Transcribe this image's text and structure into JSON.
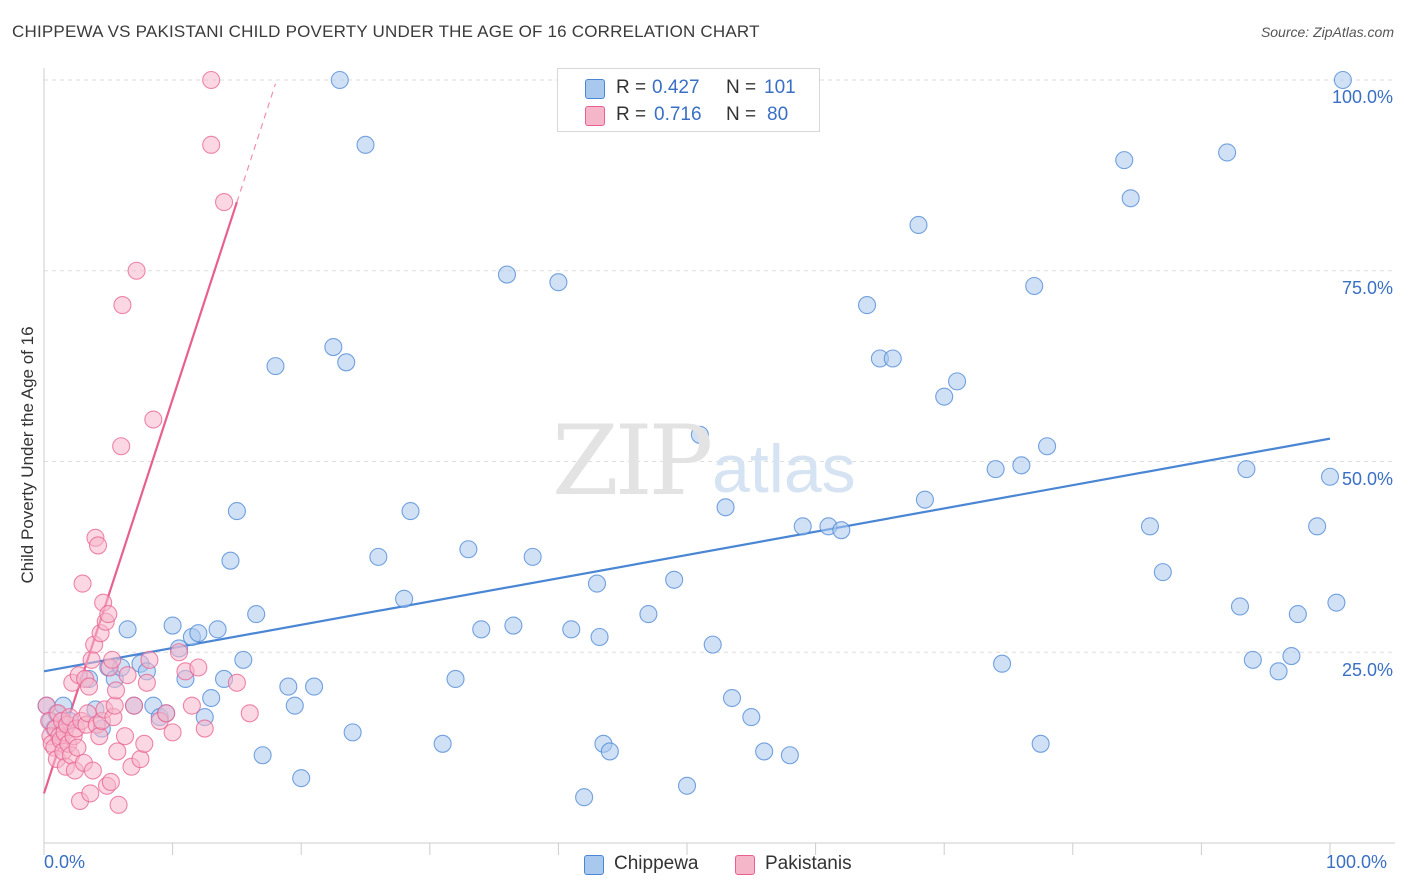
{
  "title": "CHIPPEWA VS PAKISTANI CHILD POVERTY UNDER THE AGE OF 16 CORRELATION CHART",
  "source": "Source: ZipAtlas.com",
  "watermark": {
    "zip": "ZIP",
    "atlas": "atlas"
  },
  "colors": {
    "blue": "#4a86d4",
    "blue_fill": "#a9c8ee",
    "pink": "#e8608f",
    "pink_fill": "#f6b6ca",
    "grid": "#dddddd"
  },
  "legend_top": {
    "rows": [
      {
        "label": "R =",
        "r_value": "0.427",
        "n_label": "N =",
        "n_value": "101"
      },
      {
        "label": "R =",
        "r_value": "0.716",
        "n_label": "N =",
        "n_value": "80"
      }
    ]
  },
  "legend_bottom": [
    {
      "label": "Chippewa"
    },
    {
      "label": "Pakistanis"
    }
  ],
  "chart_data": {
    "type": "scatter",
    "title": "CHIPPEWA VS PAKISTANI CHILD POVERTY UNDER THE AGE OF 16 CORRELATION CHART",
    "xlabel": "",
    "ylabel": "Child Poverty Under the Age of 16",
    "xlim": [
      0,
      105
    ],
    "ylim": [
      0,
      105
    ],
    "x_ticks": [
      "0.0%",
      "100.0%"
    ],
    "y_ticks": [
      {
        "value": 25,
        "label": "25.0%"
      },
      {
        "value": 50,
        "label": "50.0%"
      },
      {
        "value": 75,
        "label": "75.0%"
      },
      {
        "value": 100,
        "label": "100.0%"
      }
    ],
    "series": [
      {
        "name": "Chippewa",
        "trend": {
          "x0": 0,
          "y0": 22.5,
          "x1": 100,
          "y1": 53.0
        },
        "points": [
          [
            0.2,
            18
          ],
          [
            0.5,
            16
          ],
          [
            0.8,
            15
          ],
          [
            1.0,
            17
          ],
          [
            1.5,
            18
          ],
          [
            2.0,
            16
          ],
          [
            3.5,
            21.5
          ],
          [
            4.0,
            17.5
          ],
          [
            4.5,
            15
          ],
          [
            5.0,
            23
          ],
          [
            5.5,
            21.5
          ],
          [
            6,
            23
          ],
          [
            6.5,
            28
          ],
          [
            7,
            18
          ],
          [
            7.5,
            23.5
          ],
          [
            8,
            22.5
          ],
          [
            8.5,
            18
          ],
          [
            9,
            16.5
          ],
          [
            9.5,
            17
          ],
          [
            10,
            28.5
          ],
          [
            10.5,
            25.5
          ],
          [
            11,
            21.5
          ],
          [
            11.5,
            27
          ],
          [
            12,
            27.5
          ],
          [
            12.5,
            16.5
          ],
          [
            13,
            19
          ],
          [
            13.5,
            28
          ],
          [
            14,
            21.5
          ],
          [
            14.5,
            37
          ],
          [
            15,
            43.5
          ],
          [
            15.5,
            24
          ],
          [
            16.5,
            30
          ],
          [
            17,
            11.5
          ],
          [
            18,
            62.5
          ],
          [
            19,
            20.5
          ],
          [
            19.5,
            18
          ],
          [
            20,
            8.5
          ],
          [
            21,
            20.5
          ],
          [
            22.5,
            65
          ],
          [
            23,
            100
          ],
          [
            23.5,
            63
          ],
          [
            24,
            14.5
          ],
          [
            25,
            91.5
          ],
          [
            26,
            37.5
          ],
          [
            28,
            32
          ],
          [
            28.5,
            43.5
          ],
          [
            31,
            13
          ],
          [
            32,
            21.5
          ],
          [
            33,
            38.5
          ],
          [
            34,
            28
          ],
          [
            36,
            74.5
          ],
          [
            36.5,
            28.5
          ],
          [
            38,
            37.5
          ],
          [
            40,
            73.5
          ],
          [
            41,
            28
          ],
          [
            42,
            6
          ],
          [
            43,
            34
          ],
          [
            43.2,
            27
          ],
          [
            43.5,
            13
          ],
          [
            44,
            12
          ],
          [
            47,
            30
          ],
          [
            49,
            34.5
          ],
          [
            50,
            7.5
          ],
          [
            51,
            53.5
          ],
          [
            52,
            26
          ],
          [
            53,
            44
          ],
          [
            53.5,
            19
          ],
          [
            55,
            16.5
          ],
          [
            56,
            12
          ],
          [
            58,
            11.5
          ],
          [
            59,
            41.5
          ],
          [
            61,
            41.5
          ],
          [
            62,
            41
          ],
          [
            64,
            70.5
          ],
          [
            65,
            63.5
          ],
          [
            66,
            63.5
          ],
          [
            68,
            81
          ],
          [
            68.5,
            45
          ],
          [
            70,
            58.5
          ],
          [
            71,
            60.5
          ],
          [
            74,
            49
          ],
          [
            74.5,
            23.5
          ],
          [
            76,
            49.5
          ],
          [
            77,
            73
          ],
          [
            77.5,
            13
          ],
          [
            78,
            52
          ],
          [
            84,
            89.5
          ],
          [
            84.5,
            84.5
          ],
          [
            86,
            41.5
          ],
          [
            87,
            35.5
          ],
          [
            92,
            90.5
          ],
          [
            93,
            31
          ],
          [
            93.5,
            49
          ],
          [
            94,
            24
          ],
          [
            96,
            22.5
          ],
          [
            97,
            24.5
          ],
          [
            97.5,
            30
          ],
          [
            99,
            41.5
          ],
          [
            100,
            48
          ],
          [
            100.5,
            31.5
          ],
          [
            101,
            100
          ]
        ]
      },
      {
        "name": "Pakistanis",
        "trend": {
          "x0": 0,
          "y0": 6.5,
          "x1": 15,
          "y1": 84
        },
        "trend_dashed_end": {
          "x": 18,
          "y": 99.5
        },
        "points": [
          [
            0.2,
            18
          ],
          [
            0.4,
            16
          ],
          [
            0.5,
            14
          ],
          [
            0.6,
            13
          ],
          [
            0.8,
            12.5
          ],
          [
            0.9,
            15
          ],
          [
            1.0,
            11
          ],
          [
            1.1,
            17
          ],
          [
            1.2,
            14
          ],
          [
            1.3,
            13.5
          ],
          [
            1.4,
            16
          ],
          [
            1.5,
            12
          ],
          [
            1.6,
            14.5
          ],
          [
            1.7,
            10
          ],
          [
            1.8,
            15.5
          ],
          [
            1.9,
            13
          ],
          [
            2.0,
            16.5
          ],
          [
            2.1,
            11.5
          ],
          [
            2.2,
            21
          ],
          [
            2.3,
            14
          ],
          [
            2.4,
            9.5
          ],
          [
            2.5,
            15
          ],
          [
            2.6,
            12.5
          ],
          [
            2.7,
            22
          ],
          [
            2.8,
            5.5
          ],
          [
            2.9,
            16
          ],
          [
            3.0,
            34
          ],
          [
            3.1,
            10.5
          ],
          [
            3.2,
            21.5
          ],
          [
            3.3,
            15.5
          ],
          [
            3.4,
            17
          ],
          [
            3.5,
            20.5
          ],
          [
            3.6,
            6.5
          ],
          [
            3.7,
            24
          ],
          [
            3.8,
            9.5
          ],
          [
            3.9,
            26
          ],
          [
            4.0,
            40
          ],
          [
            4.1,
            15.5
          ],
          [
            4.2,
            39
          ],
          [
            4.3,
            14
          ],
          [
            4.4,
            27.5
          ],
          [
            4.5,
            16
          ],
          [
            4.6,
            31.5
          ],
          [
            4.7,
            17.5
          ],
          [
            4.8,
            29
          ],
          [
            4.9,
            7.5
          ],
          [
            5.0,
            30
          ],
          [
            5.1,
            23
          ],
          [
            5.2,
            8
          ],
          [
            5.3,
            24
          ],
          [
            5.4,
            16.5
          ],
          [
            5.5,
            18
          ],
          [
            5.6,
            20
          ],
          [
            5.7,
            12
          ],
          [
            5.8,
            5
          ],
          [
            6.0,
            52
          ],
          [
            6.1,
            70.5
          ],
          [
            6.3,
            14
          ],
          [
            6.5,
            22
          ],
          [
            6.8,
            10
          ],
          [
            7.0,
            18
          ],
          [
            7.2,
            75
          ],
          [
            7.5,
            11
          ],
          [
            7.8,
            13
          ],
          [
            8.0,
            21
          ],
          [
            8.2,
            24
          ],
          [
            8.5,
            55.5
          ],
          [
            9.0,
            16
          ],
          [
            9.5,
            17
          ],
          [
            10,
            14.5
          ],
          [
            10.5,
            25
          ],
          [
            11,
            22.5
          ],
          [
            11.5,
            18
          ],
          [
            12,
            23
          ],
          [
            12.5,
            15
          ],
          [
            13,
            91.5
          ],
          [
            14,
            84
          ],
          [
            15,
            21
          ],
          [
            16,
            17
          ],
          [
            13,
            100
          ]
        ]
      }
    ]
  }
}
